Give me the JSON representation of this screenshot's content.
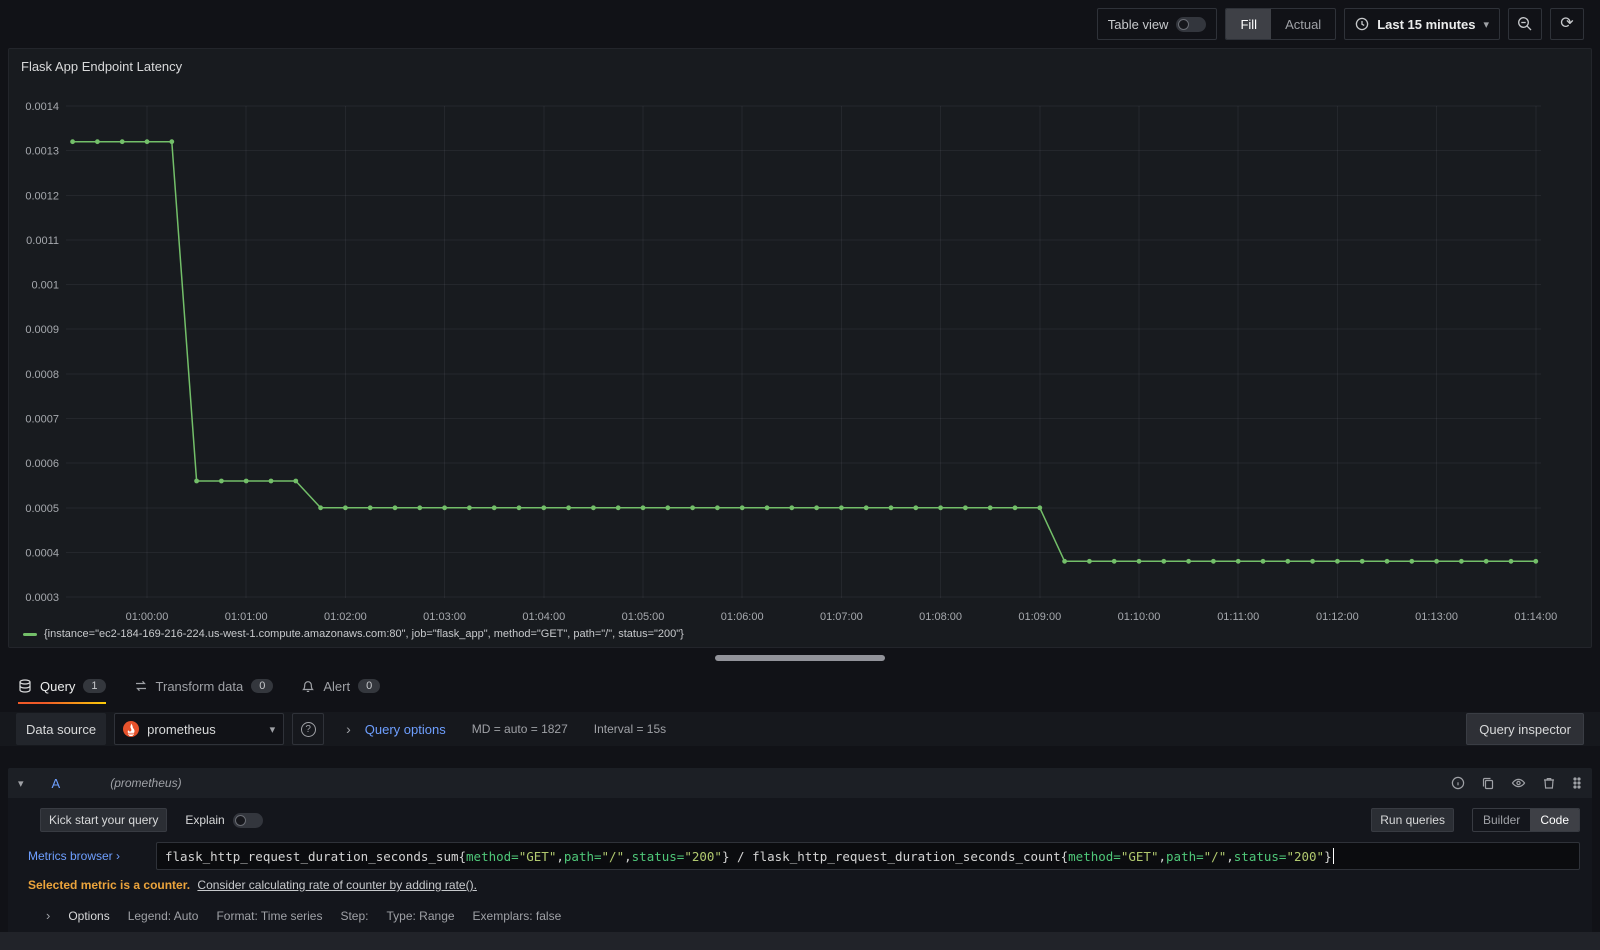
{
  "colors": {
    "series_green": "#73bf69",
    "link_blue": "#6e9fff",
    "active_tab_orange": "#f05a28",
    "warning_amber": "#eca43c",
    "prometheus_orange": "#e6522c"
  },
  "topbar": {
    "table_view_label": "Table view",
    "fill_label": "Fill",
    "actual_label": "Actual",
    "time_range_label": "Last 15 minutes",
    "icons": [
      "clock-icon",
      "chevron-down-icon",
      "zoom-out-icon",
      "refresh-icon"
    ]
  },
  "panel": {
    "title": "Flask App Endpoint Latency",
    "legend": "{instance=\"ec2-184-169-216-224.us-west-1.compute.amazonaws.com:80\", job=\"flask_app\", method=\"GET\", path=\"/\", status=\"200\"}"
  },
  "chart_data": {
    "type": "line",
    "title": "Flask App Endpoint Latency",
    "series_name": "{instance=\"ec2-184-169-216-224.us-west-1.compute.amazonaws.com:80\", job=\"flask_app\", method=\"GET\", path=\"/\", status=\"200\"}",
    "color": "#73bf69",
    "grid": true,
    "legend_position": "bottom",
    "ylim": [
      0.0003,
      0.0014
    ],
    "y_ticks": [
      "0.0014",
      "0.0013",
      "0.0012",
      "0.0011",
      "0.001",
      "0.0009",
      "0.0008",
      "0.0007",
      "0.0006",
      "0.0005",
      "0.0004",
      "0.0003"
    ],
    "x_ticks": [
      "01:00:00",
      "01:01:00",
      "01:02:00",
      "01:03:00",
      "01:04:00",
      "01:05:00",
      "01:06:00",
      "01:07:00",
      "01:08:00",
      "01:09:00",
      "01:10:00",
      "01:11:00",
      "01:12:00",
      "01:13:00",
      "01:14:00"
    ],
    "step_seconds": 15,
    "points": [
      [
        -45,
        0.00132
      ],
      [
        -30,
        0.00132
      ],
      [
        -15,
        0.00132
      ],
      [
        0,
        0.00132
      ],
      [
        15,
        0.00132
      ],
      [
        30,
        0.00056
      ],
      [
        45,
        0.00056
      ],
      [
        60,
        0.00056
      ],
      [
        75,
        0.00056
      ],
      [
        90,
        0.00056
      ],
      [
        105,
        0.0005
      ],
      [
        120,
        0.0005
      ],
      [
        135,
        0.0005
      ],
      [
        150,
        0.0005
      ],
      [
        165,
        0.0005
      ],
      [
        180,
        0.0005
      ],
      [
        195,
        0.0005
      ],
      [
        210,
        0.0005
      ],
      [
        225,
        0.0005
      ],
      [
        240,
        0.0005
      ],
      [
        255,
        0.0005
      ],
      [
        270,
        0.0005
      ],
      [
        285,
        0.0005
      ],
      [
        300,
        0.0005
      ],
      [
        315,
        0.0005
      ],
      [
        330,
        0.0005
      ],
      [
        345,
        0.0005
      ],
      [
        360,
        0.0005
      ],
      [
        375,
        0.0005
      ],
      [
        390,
        0.0005
      ],
      [
        405,
        0.0005
      ],
      [
        420,
        0.0005
      ],
      [
        435,
        0.0005
      ],
      [
        450,
        0.0005
      ],
      [
        465,
        0.0005
      ],
      [
        480,
        0.0005
      ],
      [
        495,
        0.0005
      ],
      [
        510,
        0.0005
      ],
      [
        525,
        0.0005
      ],
      [
        540,
        0.0005
      ],
      [
        555,
        0.00038
      ],
      [
        570,
        0.00038
      ],
      [
        585,
        0.00038
      ],
      [
        600,
        0.00038
      ],
      [
        615,
        0.00038
      ],
      [
        630,
        0.00038
      ],
      [
        645,
        0.00038
      ],
      [
        660,
        0.00038
      ],
      [
        675,
        0.00038
      ],
      [
        690,
        0.00038
      ],
      [
        705,
        0.00038
      ],
      [
        720,
        0.00038
      ],
      [
        735,
        0.00038
      ],
      [
        750,
        0.00038
      ],
      [
        765,
        0.00038
      ],
      [
        780,
        0.00038
      ],
      [
        795,
        0.00038
      ],
      [
        810,
        0.00038
      ],
      [
        825,
        0.00038
      ],
      [
        840,
        0.00038
      ]
    ]
  },
  "tabs": [
    {
      "label": "Query",
      "count": "1",
      "icon": "database-icon",
      "active": true
    },
    {
      "label": "Transform data",
      "count": "0",
      "icon": "transform-icon",
      "active": false
    },
    {
      "label": "Alert",
      "count": "0",
      "icon": "bell-icon",
      "active": false
    }
  ],
  "datasource_row": {
    "label": "Data source",
    "selected": "prometheus",
    "icon": "prometheus-icon",
    "help_icon": "help-circle-icon",
    "query_options_label": "Query options",
    "md_text": "MD = auto = 1827",
    "interval_text": "Interval = 15s",
    "query_inspector_label": "Query inspector"
  },
  "query_row": {
    "ref_id": "A",
    "datasource_hint": "(prometheus)",
    "header_icons": [
      "info-circle-icon",
      "copy-icon",
      "eye-icon",
      "trash-icon",
      "drag-handle-icon"
    ],
    "kick_start_label": "Kick start your query",
    "explain_label": "Explain",
    "run_queries_label": "Run queries",
    "builder_label": "Builder",
    "code_label": "Code",
    "metrics_browser_label": "Metrics browser ›",
    "query_text": "flask_http_request_duration_seconds_sum{method=\"GET\",path=\"/\",status=\"200\"} / flask_http_request_duration_seconds_count{method=\"GET\",path=\"/\",status=\"200\"}",
    "query_segments": [
      {
        "t": "flask_http_request_duration_seconds_sum{",
        "c": "p"
      },
      {
        "t": "method=",
        "c": "l"
      },
      {
        "t": "\"GET\"",
        "c": "s"
      },
      {
        "t": ",",
        "c": "p"
      },
      {
        "t": "path=",
        "c": "l"
      },
      {
        "t": "\"/\"",
        "c": "s"
      },
      {
        "t": ",",
        "c": "p"
      },
      {
        "t": "status=",
        "c": "l"
      },
      {
        "t": "\"200\"",
        "c": "s"
      },
      {
        "t": "} / flask_http_request_duration_seconds_count{",
        "c": "p"
      },
      {
        "t": "method=",
        "c": "l"
      },
      {
        "t": "\"GET\"",
        "c": "s"
      },
      {
        "t": ",",
        "c": "p"
      },
      {
        "t": "path=",
        "c": "l"
      },
      {
        "t": "\"/\"",
        "c": "s"
      },
      {
        "t": ",",
        "c": "p"
      },
      {
        "t": "status=",
        "c": "l"
      },
      {
        "t": "\"200\"",
        "c": "s"
      },
      {
        "t": "}",
        "c": "p"
      }
    ],
    "warning_bold": "Selected metric is a counter.",
    "warning_link": "Consider calculating rate of counter by adding rate().",
    "options_label": "Options",
    "options_items": [
      "Legend: Auto",
      "Format: Time series",
      "Step:",
      "Type: Range",
      "Exemplars: false"
    ]
  }
}
